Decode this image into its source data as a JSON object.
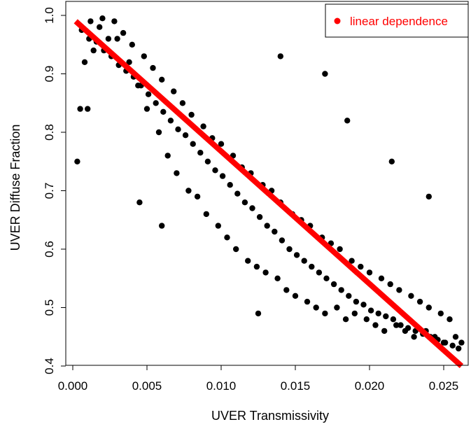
{
  "chart_data": {
    "type": "scatter",
    "title": "",
    "xlabel": "UVER Transmissivity",
    "ylabel": "UVER Diffuse Fraction",
    "xlim": [
      0.0,
      0.0263
    ],
    "ylim": [
      0.4,
      1.0
    ],
    "xticks": [
      "0.000",
      "0.005",
      "0.010",
      "0.015",
      "0.020",
      "0.025"
    ],
    "yticks": [
      "0.4",
      "0.5",
      "0.6",
      "0.7",
      "0.8",
      "0.9",
      "1.0"
    ],
    "grid": false,
    "legend": {
      "position": "top-right",
      "entries": [
        "linear dependence"
      ]
    },
    "colors": {
      "points": "#000000",
      "fit_line": "#ff0000"
    },
    "series": [
      {
        "type": "scatter",
        "x": [
          0.0006,
          0.0011,
          0.0016,
          0.0021,
          0.0026,
          0.0031,
          0.0036,
          0.0041,
          0.0046,
          0.0051,
          0.0056,
          0.0061,
          0.0066,
          0.0071,
          0.0076,
          0.0081,
          0.0086,
          0.0091,
          0.0096,
          0.0101,
          0.0106,
          0.0111,
          0.0116,
          0.0121,
          0.0126,
          0.0131,
          0.0136,
          0.0141,
          0.0146,
          0.0151,
          0.0156,
          0.0161,
          0.0166,
          0.0171,
          0.0176,
          0.0181,
          0.0186,
          0.0191,
          0.0196,
          0.0201,
          0.0206,
          0.0211,
          0.0216,
          0.0221,
          0.0226,
          0.0231,
          0.0236,
          0.0241,
          0.0246,
          0.0251,
          0.0256,
          0.026,
          0.0008,
          0.0014,
          0.002,
          0.0028,
          0.0034,
          0.004,
          0.0048,
          0.0054,
          0.006,
          0.0068,
          0.0074,
          0.008,
          0.0088,
          0.0094,
          0.01,
          0.0108,
          0.0114,
          0.012,
          0.0128,
          0.0134,
          0.014,
          0.0148,
          0.0154,
          0.016,
          0.0168,
          0.0174,
          0.018,
          0.0188,
          0.0194,
          0.02,
          0.0208,
          0.0214,
          0.022,
          0.0228,
          0.0234,
          0.024,
          0.0248,
          0.0254,
          0.0005,
          0.0012,
          0.0018,
          0.0024,
          0.003,
          0.0038,
          0.0044,
          0.005,
          0.0058,
          0.0064,
          0.007,
          0.0078,
          0.0084,
          0.009,
          0.0098,
          0.0104,
          0.011,
          0.0118,
          0.0124,
          0.013,
          0.0138,
          0.0144,
          0.015,
          0.0158,
          0.0164,
          0.017,
          0.0178,
          0.0184,
          0.019,
          0.0198,
          0.0204,
          0.021,
          0.0218,
          0.0224,
          0.023,
          0.0238,
          0.0244,
          0.025,
          0.0258,
          0.0262,
          0.0003,
          0.0125,
          0.0045,
          0.017,
          0.0215,
          0.024,
          0.014,
          0.006,
          0.0185,
          0.001
        ],
        "y": [
          0.975,
          0.96,
          0.955,
          0.94,
          0.93,
          0.915,
          0.905,
          0.895,
          0.88,
          0.865,
          0.85,
          0.835,
          0.82,
          0.805,
          0.795,
          0.78,
          0.765,
          0.75,
          0.735,
          0.725,
          0.71,
          0.695,
          0.68,
          0.67,
          0.655,
          0.64,
          0.63,
          0.615,
          0.6,
          0.59,
          0.58,
          0.57,
          0.56,
          0.55,
          0.54,
          0.53,
          0.52,
          0.51,
          0.505,
          0.495,
          0.49,
          0.485,
          0.48,
          0.47,
          0.465,
          0.46,
          0.455,
          0.45,
          0.445,
          0.44,
          0.435,
          0.43,
          0.92,
          0.94,
          0.995,
          0.99,
          0.97,
          0.95,
          0.93,
          0.91,
          0.89,
          0.87,
          0.85,
          0.83,
          0.81,
          0.79,
          0.78,
          0.76,
          0.74,
          0.73,
          0.71,
          0.7,
          0.68,
          0.66,
          0.65,
          0.64,
          0.62,
          0.61,
          0.6,
          0.58,
          0.57,
          0.56,
          0.55,
          0.54,
          0.53,
          0.52,
          0.51,
          0.5,
          0.49,
          0.48,
          0.84,
          0.99,
          0.98,
          0.96,
          0.96,
          0.92,
          0.88,
          0.84,
          0.8,
          0.76,
          0.73,
          0.7,
          0.69,
          0.66,
          0.64,
          0.62,
          0.6,
          0.58,
          0.57,
          0.56,
          0.55,
          0.53,
          0.52,
          0.51,
          0.5,
          0.49,
          0.5,
          0.48,
          0.49,
          0.48,
          0.47,
          0.46,
          0.47,
          0.46,
          0.45,
          0.46,
          0.45,
          0.44,
          0.45,
          0.44,
          0.75,
          0.49,
          0.68,
          0.9,
          0.75,
          0.69,
          0.93,
          0.64,
          0.82,
          0.84
        ]
      },
      {
        "name": "linear dependence",
        "type": "line",
        "x": [
          0.0002,
          0.0262
        ],
        "y": [
          0.99,
          0.4
        ]
      }
    ]
  }
}
